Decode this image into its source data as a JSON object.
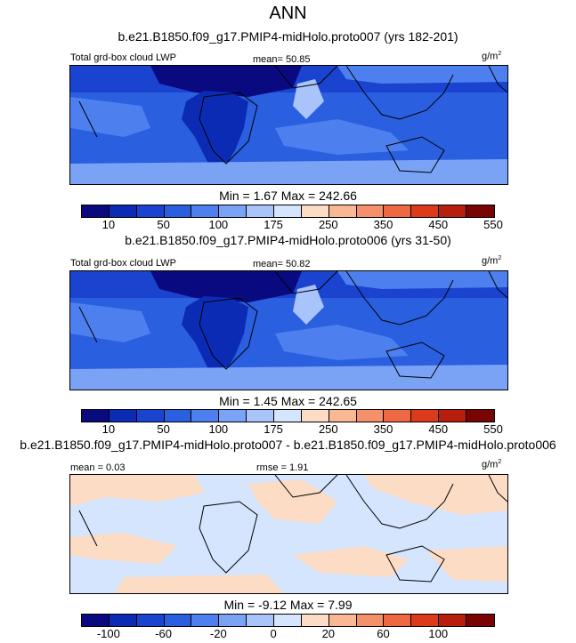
{
  "main_title": "ANN",
  "panels": [
    {
      "case_title": "b.e21.B1850.f09_g17.PMIP4-midHolo.proto007 (yrs 182-201)",
      "left_label": "Total grd-box cloud LWP",
      "center_label": "mean=  50.85",
      "units": "g/m",
      "units_sup": "2",
      "minmax": "Min =   1.67 Max = 242.66",
      "colors": [
        "#0a0a80",
        "#0c2bb5",
        "#1a44cf",
        "#2a5fe0",
        "#4d80ee",
        "#7aa2f5",
        "#a9c4fa",
        "#d4e5fd",
        "#fcdcc4",
        "#f9b893",
        "#f4916a",
        "#ee6843",
        "#dd3a1c",
        "#b81e0e",
        "#7a0403"
      ],
      "tick_labels": [
        "10",
        "50",
        "100",
        "175",
        "250",
        "350",
        "450",
        "550"
      ],
      "chart_data": {
        "type": "heatmap",
        "variable": "Total grd-box cloud LWP",
        "units": "g/m2",
        "mean": 50.85,
        "min": 1.67,
        "max": 242.66,
        "contour_levels": [
          5,
          10,
          20,
          50,
          75,
          100,
          150,
          175,
          200,
          250,
          300,
          350,
          400,
          450,
          500,
          550
        ],
        "colorbar_labels": [
          10,
          50,
          100,
          175,
          250,
          350,
          450,
          550
        ]
      }
    },
    {
      "case_title": "b.e21.B1850.f09_g17.PMIP4-midHolo.proto006 (yrs 31-50)",
      "left_label": "Total grd-box cloud LWP",
      "center_label": "mean=  50.82",
      "units": "g/m",
      "units_sup": "2",
      "minmax": "Min =   1.45 Max = 242.65",
      "colors": [
        "#0a0a80",
        "#0c2bb5",
        "#1a44cf",
        "#2a5fe0",
        "#4d80ee",
        "#7aa2f5",
        "#a9c4fa",
        "#d4e5fd",
        "#fcdcc4",
        "#f9b893",
        "#f4916a",
        "#ee6843",
        "#dd3a1c",
        "#b81e0e",
        "#7a0403"
      ],
      "tick_labels": [
        "10",
        "50",
        "100",
        "175",
        "250",
        "350",
        "450",
        "550"
      ],
      "chart_data": {
        "type": "heatmap",
        "variable": "Total grd-box cloud LWP",
        "units": "g/m2",
        "mean": 50.82,
        "min": 1.45,
        "max": 242.65,
        "contour_levels": [
          5,
          10,
          20,
          50,
          75,
          100,
          150,
          175,
          200,
          250,
          300,
          350,
          400,
          450,
          500,
          550
        ],
        "colorbar_labels": [
          10,
          50,
          100,
          175,
          250,
          350,
          450,
          550
        ]
      }
    },
    {
      "case_title": "b.e21.B1850.f09_g17.PMIP4-midHolo.proto007 - b.e21.B1850.f09_g17.PMIP4-midHolo.proto006",
      "left_label": "mean =   0.03",
      "center_label": "rmse =   1.91",
      "units": "g/m",
      "units_sup": "2",
      "minmax": "Min =  -9.12 Max =   7.99",
      "colors": [
        "#0a0a80",
        "#0c2bb5",
        "#1a44cf",
        "#2a5fe0",
        "#4d80ee",
        "#7aa2f5",
        "#a9c4fa",
        "#d4e5fd",
        "#fcdcc4",
        "#f9b893",
        "#f4916a",
        "#ee6843",
        "#dd3a1c",
        "#b81e0e",
        "#7a0403"
      ],
      "tick_labels": [
        "-100",
        "-60",
        "-20",
        "0",
        "20",
        "60",
        "100"
      ],
      "chart_data": {
        "type": "heatmap",
        "variable": "difference",
        "units": "g/m2",
        "mean": 0.03,
        "rmse": 1.91,
        "min": -9.12,
        "max": 7.99,
        "colorbar_labels": [
          -100,
          -60,
          -20,
          0,
          20,
          60,
          100
        ]
      }
    }
  ]
}
